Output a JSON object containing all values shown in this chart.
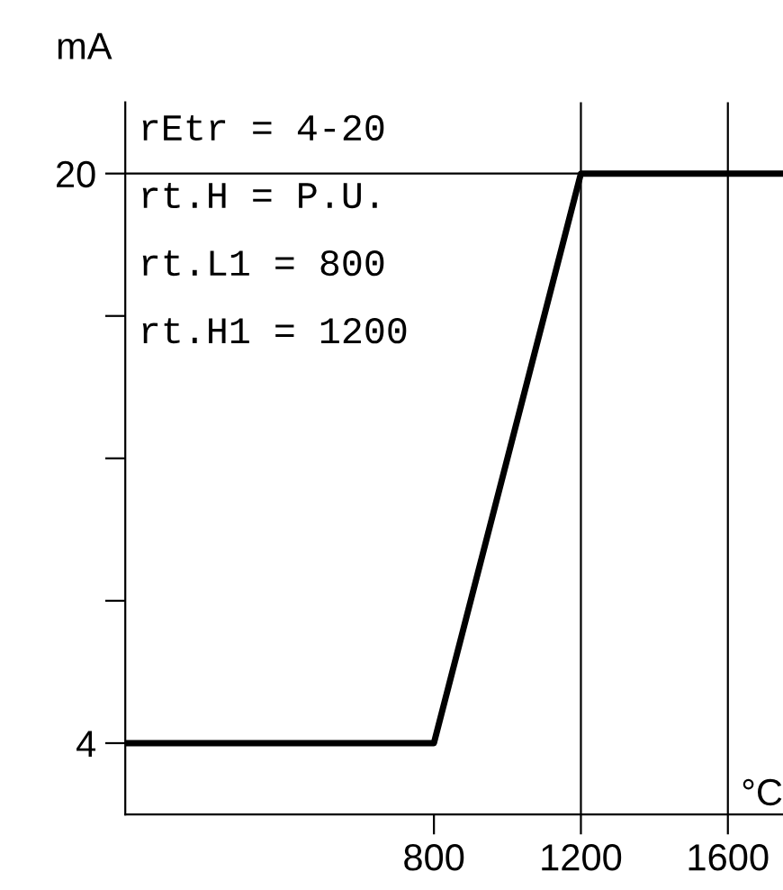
{
  "chart_data": {
    "type": "line",
    "xlabel": "°C",
    "ylabel": "mA",
    "x": [
      -40,
      800,
      1200,
      1750
    ],
    "values": [
      4,
      4,
      20,
      20
    ],
    "color": "#000000",
    "xlim": [
      -40,
      1750
    ],
    "ylim": [
      2,
      22
    ],
    "xticks": [
      800,
      1200,
      1600
    ],
    "yticks": [
      4,
      {
        "value": 8,
        "label": null
      },
      {
        "value": 12,
        "label": null
      },
      {
        "value": 16,
        "label": null
      },
      20
    ],
    "ref_lines": [
      {
        "axis": "x",
        "value": 1200
      },
      {
        "axis": "x",
        "value": 1600
      },
      {
        "axis": "y",
        "value": 20
      }
    ],
    "annotations": [
      "rEtr = 4-20",
      "rt.H = P.U.",
      "rt.L1 = 800",
      "rt.H1 = 1200"
    ],
    "grid": false,
    "legend": false
  }
}
